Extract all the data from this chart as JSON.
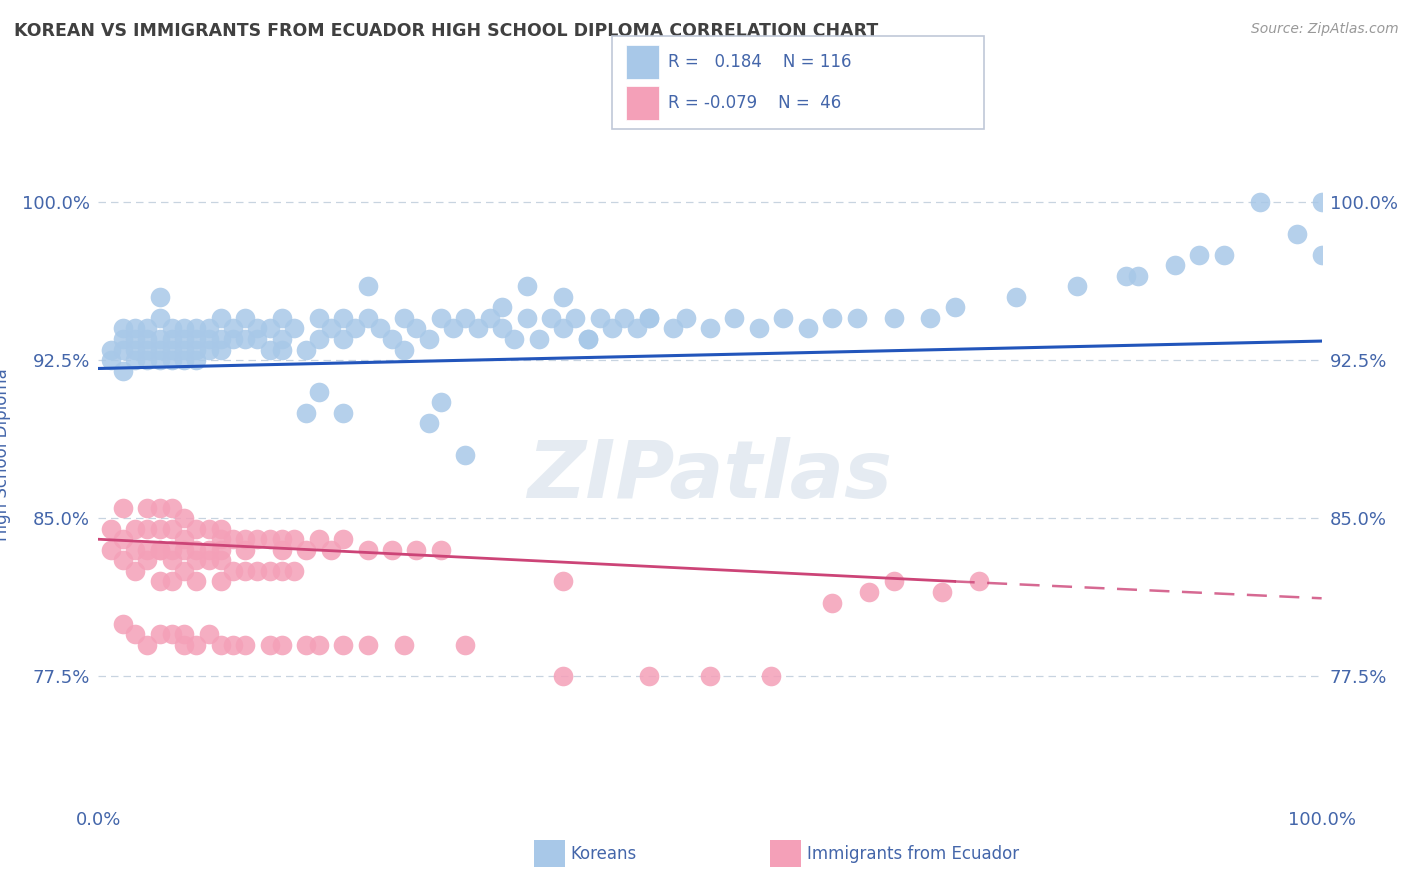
{
  "title": "KOREAN VS IMMIGRANTS FROM ECUADOR HIGH SCHOOL DIPLOMA CORRELATION CHART",
  "source_text": "Source: ZipAtlas.com",
  "ylabel": "High School Diploma",
  "xlim": [
    0.0,
    1.0
  ],
  "ylim": [
    0.715,
    1.045
  ],
  "yticks": [
    0.775,
    0.85,
    0.925,
    1.0
  ],
  "ytick_labels": [
    "77.5%",
    "85.0%",
    "92.5%",
    "100.0%"
  ],
  "xtick_labels": [
    "0.0%",
    "100.0%"
  ],
  "xticks": [
    0.0,
    1.0
  ],
  "korean_color": "#a8c8e8",
  "ecuador_color": "#f4a0b8",
  "trend_korean_color": "#2255bb",
  "trend_ecuador_color": "#cc4477",
  "legend_border_color": "#c0c8d8",
  "R_korean": 0.184,
  "N_korean": 116,
  "R_ecuador": -0.079,
  "N_ecuador": 46,
  "watermark": "ZIPatlas",
  "watermark_color": "#d0dce8",
  "background_color": "#ffffff",
  "title_color": "#404040",
  "axis_label_color": "#4466aa",
  "tick_color": "#4466aa",
  "grid_color": "#c8d4e0",
  "korean_scatter_x": [
    0.01,
    0.01,
    0.02,
    0.02,
    0.02,
    0.02,
    0.03,
    0.03,
    0.03,
    0.03,
    0.04,
    0.04,
    0.04,
    0.04,
    0.05,
    0.05,
    0.05,
    0.05,
    0.05,
    0.06,
    0.06,
    0.06,
    0.06,
    0.07,
    0.07,
    0.07,
    0.07,
    0.08,
    0.08,
    0.08,
    0.08,
    0.09,
    0.09,
    0.09,
    0.1,
    0.1,
    0.1,
    0.11,
    0.11,
    0.12,
    0.12,
    0.13,
    0.13,
    0.14,
    0.14,
    0.15,
    0.15,
    0.16,
    0.17,
    0.18,
    0.18,
    0.19,
    0.2,
    0.2,
    0.21,
    0.22,
    0.23,
    0.24,
    0.25,
    0.26,
    0.27,
    0.28,
    0.29,
    0.3,
    0.31,
    0.32,
    0.33,
    0.34,
    0.35,
    0.36,
    0.37,
    0.38,
    0.39,
    0.4,
    0.41,
    0.42,
    0.43,
    0.44,
    0.45,
    0.47,
    0.48,
    0.5,
    0.52,
    0.54,
    0.56,
    0.58,
    0.6,
    0.62,
    0.65,
    0.68,
    0.7,
    0.75,
    0.8,
    0.84,
    0.85,
    0.88,
    0.9,
    0.92,
    0.95,
    0.98,
    1.0,
    1.0,
    0.27,
    0.3,
    0.17,
    0.35,
    0.25,
    0.18,
    0.22,
    0.15,
    0.28,
    0.4,
    0.2,
    0.33,
    0.38,
    0.45
  ],
  "korean_scatter_y": [
    0.93,
    0.925,
    0.935,
    0.93,
    0.94,
    0.92,
    0.935,
    0.93,
    0.94,
    0.925,
    0.94,
    0.935,
    0.93,
    0.925,
    0.955,
    0.93,
    0.945,
    0.935,
    0.925,
    0.935,
    0.94,
    0.93,
    0.925,
    0.94,
    0.935,
    0.93,
    0.925,
    0.935,
    0.94,
    0.93,
    0.925,
    0.94,
    0.935,
    0.93,
    0.945,
    0.935,
    0.93,
    0.94,
    0.935,
    0.945,
    0.935,
    0.94,
    0.935,
    0.94,
    0.93,
    0.945,
    0.935,
    0.94,
    0.93,
    0.945,
    0.935,
    0.94,
    0.945,
    0.935,
    0.94,
    0.945,
    0.94,
    0.935,
    0.945,
    0.94,
    0.935,
    0.945,
    0.94,
    0.945,
    0.94,
    0.945,
    0.94,
    0.935,
    0.945,
    0.935,
    0.945,
    0.94,
    0.945,
    0.935,
    0.945,
    0.94,
    0.945,
    0.94,
    0.945,
    0.94,
    0.945,
    0.94,
    0.945,
    0.94,
    0.945,
    0.94,
    0.945,
    0.945,
    0.945,
    0.945,
    0.95,
    0.955,
    0.96,
    0.965,
    0.965,
    0.97,
    0.975,
    0.975,
    1.0,
    0.985,
    1.0,
    0.975,
    0.895,
    0.88,
    0.9,
    0.96,
    0.93,
    0.91,
    0.96,
    0.93,
    0.905,
    0.935,
    0.9,
    0.95,
    0.955,
    0.945
  ],
  "ecuador_scatter_x": [
    0.01,
    0.02,
    0.02,
    0.03,
    0.03,
    0.04,
    0.04,
    0.04,
    0.05,
    0.05,
    0.05,
    0.06,
    0.06,
    0.06,
    0.07,
    0.07,
    0.07,
    0.08,
    0.08,
    0.09,
    0.09,
    0.1,
    0.1,
    0.1,
    0.11,
    0.12,
    0.12,
    0.13,
    0.14,
    0.15,
    0.15,
    0.16,
    0.17,
    0.18,
    0.19,
    0.2,
    0.22,
    0.24,
    0.26,
    0.28,
    0.38,
    0.6,
    0.63,
    0.65,
    0.69,
    0.72
  ],
  "ecuador_scatter_y": [
    0.845,
    0.84,
    0.855,
    0.845,
    0.835,
    0.845,
    0.855,
    0.835,
    0.855,
    0.845,
    0.835,
    0.855,
    0.845,
    0.835,
    0.85,
    0.84,
    0.835,
    0.845,
    0.835,
    0.845,
    0.835,
    0.845,
    0.84,
    0.835,
    0.84,
    0.84,
    0.835,
    0.84,
    0.84,
    0.84,
    0.835,
    0.84,
    0.835,
    0.84,
    0.835,
    0.84,
    0.835,
    0.835,
    0.835,
    0.835,
    0.82,
    0.81,
    0.815,
    0.82,
    0.815,
    0.82
  ],
  "ecuador_extra_x": [
    0.01,
    0.02,
    0.03,
    0.04,
    0.05,
    0.05,
    0.06,
    0.06,
    0.07,
    0.08,
    0.08,
    0.09,
    0.1,
    0.1,
    0.11,
    0.12,
    0.13,
    0.14,
    0.15,
    0.16,
    0.02,
    0.03,
    0.04,
    0.05,
    0.06,
    0.07,
    0.07,
    0.08,
    0.09,
    0.1,
    0.11,
    0.12,
    0.14,
    0.15,
    0.17,
    0.18,
    0.2,
    0.22,
    0.25,
    0.3,
    0.38,
    0.45,
    0.5,
    0.55
  ],
  "ecuador_extra_y": [
    0.835,
    0.83,
    0.825,
    0.83,
    0.835,
    0.82,
    0.83,
    0.82,
    0.825,
    0.83,
    0.82,
    0.83,
    0.83,
    0.82,
    0.825,
    0.825,
    0.825,
    0.825,
    0.825,
    0.825,
    0.8,
    0.795,
    0.79,
    0.795,
    0.795,
    0.79,
    0.795,
    0.79,
    0.795,
    0.79,
    0.79,
    0.79,
    0.79,
    0.79,
    0.79,
    0.79,
    0.79,
    0.79,
    0.79,
    0.79,
    0.775,
    0.775,
    0.775,
    0.775
  ],
  "trend_korean_x0": 0.0,
  "trend_korean_y0": 0.921,
  "trend_korean_x1": 1.0,
  "trend_korean_y1": 0.934,
  "trend_ecuador_x0": 0.0,
  "trend_ecuador_y0": 0.84,
  "trend_ecuador_x1": 0.7,
  "trend_ecuador_y1": 0.82,
  "trend_ecuador_dash_x0": 0.7,
  "trend_ecuador_dash_y0": 0.82,
  "trend_ecuador_dash_x1": 1.0,
  "trend_ecuador_dash_y1": 0.812
}
